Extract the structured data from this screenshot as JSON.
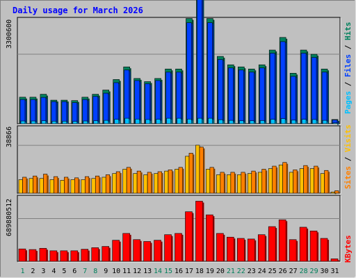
{
  "title": "Daily usage for March 2026",
  "colors": {
    "background": "#c0c0c0",
    "panel": "#c0c0c0",
    "hits": "#00805c",
    "files": "#0040ff",
    "pages": "#00c0ff",
    "visits": "#ffc000",
    "sites": "#ff8000",
    "kbytes": "#ff0000",
    "title": "#0000ff"
  },
  "labels": {
    "hits": "Hits",
    "files": "Files",
    "pages": "Pages",
    "visits": "Visits",
    "sites": "Sites",
    "kbytes": "KBytes",
    "sep": " / "
  },
  "chart_data": {
    "type": "bar",
    "title": "Daily usage for March 2026",
    "categories": [
      "1",
      "2",
      "3",
      "4",
      "5",
      "6",
      "7",
      "8",
      "9",
      "10",
      "11",
      "12",
      "13",
      "14",
      "15",
      "16",
      "17",
      "18",
      "19",
      "20",
      "21",
      "22",
      "23",
      "24",
      "25",
      "26",
      "27",
      "28",
      "29",
      "30",
      "31"
    ],
    "weekend_days": [
      "1",
      "7",
      "8",
      "14",
      "15",
      "21",
      "22",
      "28",
      "29"
    ],
    "panels": [
      {
        "name": "hits-files-pages",
        "y_tick": "3300600",
        "y_tick_value": 3300600,
        "ymax": 4920000,
        "series": [
          {
            "name": "Hits",
            "values": [
              1260000,
              1260000,
              1400000,
              1120000,
              1120000,
              1100000,
              1260000,
              1400000,
              1600000,
              2100000,
              2700000,
              2150000,
              2000000,
              2150000,
              2600000,
              2600000,
              5000000,
              6400000,
              5000000,
              3200000,
              2800000,
              2700000,
              2600000,
              2800000,
              3500000,
              4100000,
              2400000,
              3500000,
              3300000,
              2600000,
              200000
            ]
          },
          {
            "name": "Files",
            "values": [
              1150000,
              1150000,
              1250000,
              1050000,
              1050000,
              1000000,
              1150000,
              1300000,
              1450000,
              1950000,
              2550000,
              2050000,
              1900000,
              2050000,
              2450000,
              2450000,
              4800000,
              6150000,
              4800000,
              3050000,
              2650000,
              2550000,
              2450000,
              2650000,
              3350000,
              3900000,
              2250000,
              3350000,
              3150000,
              2450000,
              180000
            ]
          },
          {
            "name": "Pages",
            "values": [
              130000,
              130000,
              140000,
              120000,
              120000,
              110000,
              130000,
              140000,
              160000,
              210000,
              260000,
              220000,
              200000,
              210000,
              260000,
              260000,
              220000,
              260000,
              260000,
              190000,
              160000,
              140000,
              140000,
              150000,
              210000,
              240000,
              170000,
              210000,
              200000,
              160000,
              40000
            ]
          }
        ]
      },
      {
        "name": "visits-sites",
        "y_tick": "38866",
        "y_tick_value": 38866,
        "ymax": 52500,
        "series": [
          {
            "name": "Visits",
            "values": [
              11000,
              12000,
              12000,
              11000,
              10500,
              11000,
              11000,
              12000,
              13000,
              16000,
              19500,
              16000,
              15000,
              16000,
              18000,
              19500,
              30000,
              39000,
              19500,
              15000,
              15000,
              15000,
              16000,
              17000,
              20000,
              23000,
              17000,
              20000,
              20000,
              16000,
              1000
            ]
          },
          {
            "name": "Sites",
            "values": [
              13000,
              14000,
              15500,
              13500,
              13000,
              12500,
              13500,
              14000,
              15000,
              17500,
              21000,
              18000,
              17000,
              17500,
              19000,
              21000,
              32500,
              37500,
              21000,
              17000,
              17000,
              17000,
              18000,
              19500,
              22000,
              25000,
              19000,
              22500,
              22000,
              18500,
              2000
            ]
          }
        ]
      },
      {
        "name": "kbytes",
        "y_tick": "689880512",
        "y_tick_value": 689880512,
        "ymax": 1020000000,
        "series": [
          {
            "name": "KBytes",
            "values": [
              200000000,
              190000000,
              210000000,
              170000000,
              170000000,
              170000000,
              195000000,
              220000000,
              240000000,
              340000000,
              450000000,
              350000000,
              320000000,
              340000000,
              430000000,
              450000000,
              800000000,
              970000000,
              750000000,
              450000000,
              390000000,
              370000000,
              360000000,
              430000000,
              560000000,
              670000000,
              350000000,
              550000000,
              490000000,
              370000000,
              40000000
            ]
          }
        ]
      }
    ]
  }
}
